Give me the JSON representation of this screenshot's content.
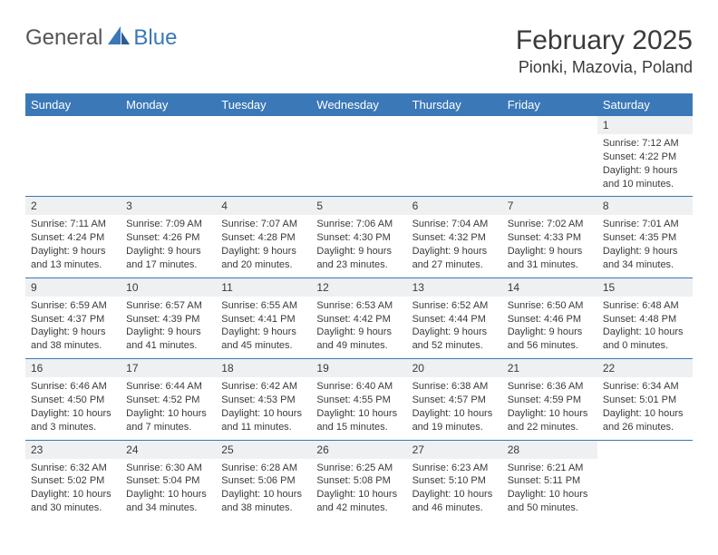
{
  "brand": {
    "part1": "General",
    "part2": "Blue"
  },
  "title": "February 2025",
  "location": "Pionki, Mazovia, Poland",
  "colors": {
    "accent": "#3b78b8",
    "background": "#ffffff",
    "daynum_bg": "#eef0f2",
    "text": "#3a3a3a",
    "header_text": "#ffffff"
  },
  "typography": {
    "title_fontsize": 30,
    "location_fontsize": 18,
    "dayheader_fontsize": 13,
    "daynum_fontsize": 12,
    "body_fontsize": 11
  },
  "day_headers": [
    "Sunday",
    "Monday",
    "Tuesday",
    "Wednesday",
    "Thursday",
    "Friday",
    "Saturday"
  ],
  "weeks": [
    [
      null,
      null,
      null,
      null,
      null,
      null,
      {
        "n": "1",
        "sr": "Sunrise: 7:12 AM",
        "ss": "Sunset: 4:22 PM",
        "d1": "Daylight: 9 hours",
        "d2": "and 10 minutes."
      }
    ],
    [
      {
        "n": "2",
        "sr": "Sunrise: 7:11 AM",
        "ss": "Sunset: 4:24 PM",
        "d1": "Daylight: 9 hours",
        "d2": "and 13 minutes."
      },
      {
        "n": "3",
        "sr": "Sunrise: 7:09 AM",
        "ss": "Sunset: 4:26 PM",
        "d1": "Daylight: 9 hours",
        "d2": "and 17 minutes."
      },
      {
        "n": "4",
        "sr": "Sunrise: 7:07 AM",
        "ss": "Sunset: 4:28 PM",
        "d1": "Daylight: 9 hours",
        "d2": "and 20 minutes."
      },
      {
        "n": "5",
        "sr": "Sunrise: 7:06 AM",
        "ss": "Sunset: 4:30 PM",
        "d1": "Daylight: 9 hours",
        "d2": "and 23 minutes."
      },
      {
        "n": "6",
        "sr": "Sunrise: 7:04 AM",
        "ss": "Sunset: 4:32 PM",
        "d1": "Daylight: 9 hours",
        "d2": "and 27 minutes."
      },
      {
        "n": "7",
        "sr": "Sunrise: 7:02 AM",
        "ss": "Sunset: 4:33 PM",
        "d1": "Daylight: 9 hours",
        "d2": "and 31 minutes."
      },
      {
        "n": "8",
        "sr": "Sunrise: 7:01 AM",
        "ss": "Sunset: 4:35 PM",
        "d1": "Daylight: 9 hours",
        "d2": "and 34 minutes."
      }
    ],
    [
      {
        "n": "9",
        "sr": "Sunrise: 6:59 AM",
        "ss": "Sunset: 4:37 PM",
        "d1": "Daylight: 9 hours",
        "d2": "and 38 minutes."
      },
      {
        "n": "10",
        "sr": "Sunrise: 6:57 AM",
        "ss": "Sunset: 4:39 PM",
        "d1": "Daylight: 9 hours",
        "d2": "and 41 minutes."
      },
      {
        "n": "11",
        "sr": "Sunrise: 6:55 AM",
        "ss": "Sunset: 4:41 PM",
        "d1": "Daylight: 9 hours",
        "d2": "and 45 minutes."
      },
      {
        "n": "12",
        "sr": "Sunrise: 6:53 AM",
        "ss": "Sunset: 4:42 PM",
        "d1": "Daylight: 9 hours",
        "d2": "and 49 minutes."
      },
      {
        "n": "13",
        "sr": "Sunrise: 6:52 AM",
        "ss": "Sunset: 4:44 PM",
        "d1": "Daylight: 9 hours",
        "d2": "and 52 minutes."
      },
      {
        "n": "14",
        "sr": "Sunrise: 6:50 AM",
        "ss": "Sunset: 4:46 PM",
        "d1": "Daylight: 9 hours",
        "d2": "and 56 minutes."
      },
      {
        "n": "15",
        "sr": "Sunrise: 6:48 AM",
        "ss": "Sunset: 4:48 PM",
        "d1": "Daylight: 10 hours",
        "d2": "and 0 minutes."
      }
    ],
    [
      {
        "n": "16",
        "sr": "Sunrise: 6:46 AM",
        "ss": "Sunset: 4:50 PM",
        "d1": "Daylight: 10 hours",
        "d2": "and 3 minutes."
      },
      {
        "n": "17",
        "sr": "Sunrise: 6:44 AM",
        "ss": "Sunset: 4:52 PM",
        "d1": "Daylight: 10 hours",
        "d2": "and 7 minutes."
      },
      {
        "n": "18",
        "sr": "Sunrise: 6:42 AM",
        "ss": "Sunset: 4:53 PM",
        "d1": "Daylight: 10 hours",
        "d2": "and 11 minutes."
      },
      {
        "n": "19",
        "sr": "Sunrise: 6:40 AM",
        "ss": "Sunset: 4:55 PM",
        "d1": "Daylight: 10 hours",
        "d2": "and 15 minutes."
      },
      {
        "n": "20",
        "sr": "Sunrise: 6:38 AM",
        "ss": "Sunset: 4:57 PM",
        "d1": "Daylight: 10 hours",
        "d2": "and 19 minutes."
      },
      {
        "n": "21",
        "sr": "Sunrise: 6:36 AM",
        "ss": "Sunset: 4:59 PM",
        "d1": "Daylight: 10 hours",
        "d2": "and 22 minutes."
      },
      {
        "n": "22",
        "sr": "Sunrise: 6:34 AM",
        "ss": "Sunset: 5:01 PM",
        "d1": "Daylight: 10 hours",
        "d2": "and 26 minutes."
      }
    ],
    [
      {
        "n": "23",
        "sr": "Sunrise: 6:32 AM",
        "ss": "Sunset: 5:02 PM",
        "d1": "Daylight: 10 hours",
        "d2": "and 30 minutes."
      },
      {
        "n": "24",
        "sr": "Sunrise: 6:30 AM",
        "ss": "Sunset: 5:04 PM",
        "d1": "Daylight: 10 hours",
        "d2": "and 34 minutes."
      },
      {
        "n": "25",
        "sr": "Sunrise: 6:28 AM",
        "ss": "Sunset: 5:06 PM",
        "d1": "Daylight: 10 hours",
        "d2": "and 38 minutes."
      },
      {
        "n": "26",
        "sr": "Sunrise: 6:25 AM",
        "ss": "Sunset: 5:08 PM",
        "d1": "Daylight: 10 hours",
        "d2": "and 42 minutes."
      },
      {
        "n": "27",
        "sr": "Sunrise: 6:23 AM",
        "ss": "Sunset: 5:10 PM",
        "d1": "Daylight: 10 hours",
        "d2": "and 46 minutes."
      },
      {
        "n": "28",
        "sr": "Sunrise: 6:21 AM",
        "ss": "Sunset: 5:11 PM",
        "d1": "Daylight: 10 hours",
        "d2": "and 50 minutes."
      },
      null
    ]
  ]
}
